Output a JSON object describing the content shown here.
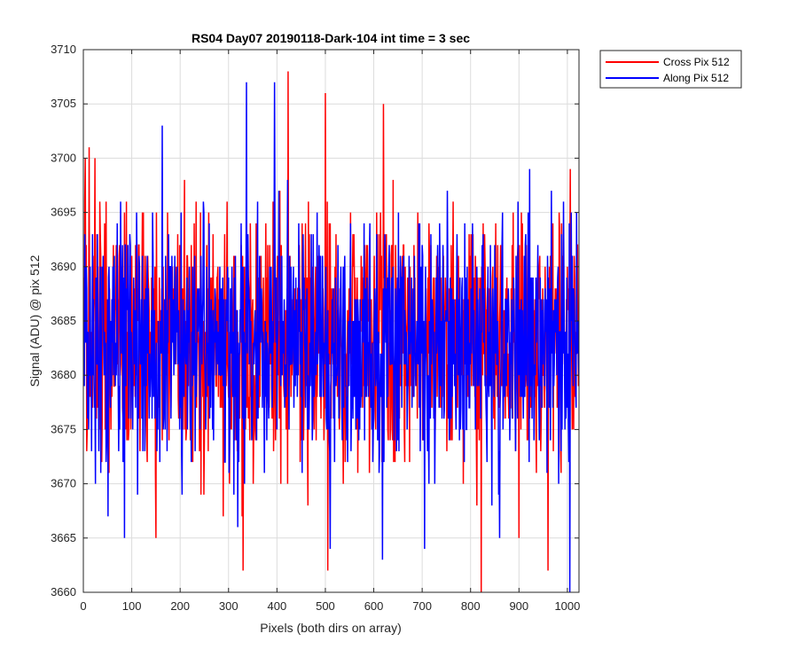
{
  "chart_data": {
    "type": "line",
    "title": "RS04 Day07 20190118-Dark-104 int time = 3 sec",
    "xlabel": "Pixels (both dirs on array)",
    "ylabel": "Signal (ADU) @ pix 512",
    "xlim": [
      0,
      1024
    ],
    "ylim": [
      3660,
      3710
    ],
    "x_ticks": [
      0,
      100,
      200,
      300,
      400,
      500,
      600,
      700,
      800,
      900,
      1000
    ],
    "y_ticks": [
      3660,
      3665,
      3670,
      3675,
      3680,
      3685,
      3690,
      3695,
      3700,
      3705,
      3710
    ],
    "grid": true,
    "legend_position": "outside top-right",
    "x": "integers 1 to 1024 (pixel index)",
    "series": [
      {
        "name": "Cross Pix 512",
        "color": "#ff0000",
        "mean": 3683,
        "std": 6,
        "min": 3660,
        "max": 3708,
        "notable_points": [
          [
            4,
            3700
          ],
          [
            12,
            3701
          ],
          [
            150,
            3665
          ],
          [
            330,
            3662
          ],
          [
            423,
            3708
          ],
          [
            500,
            3706
          ],
          [
            505,
            3662
          ],
          [
            620,
            3705
          ],
          [
            822,
            3660
          ],
          [
            960,
            3662
          ]
        ]
      },
      {
        "name": "Along Pix 512",
        "color": "#0000ff",
        "mean": 3683,
        "std": 6,
        "min": 3660,
        "max": 3707,
        "notable_points": [
          [
            85,
            3665
          ],
          [
            163,
            3703
          ],
          [
            337,
            3707
          ],
          [
            395,
            3707
          ],
          [
            510,
            3664
          ],
          [
            618,
            3663
          ],
          [
            705,
            3664
          ],
          [
            860,
            3665
          ],
          [
            1005,
            3660
          ]
        ]
      }
    ]
  }
}
